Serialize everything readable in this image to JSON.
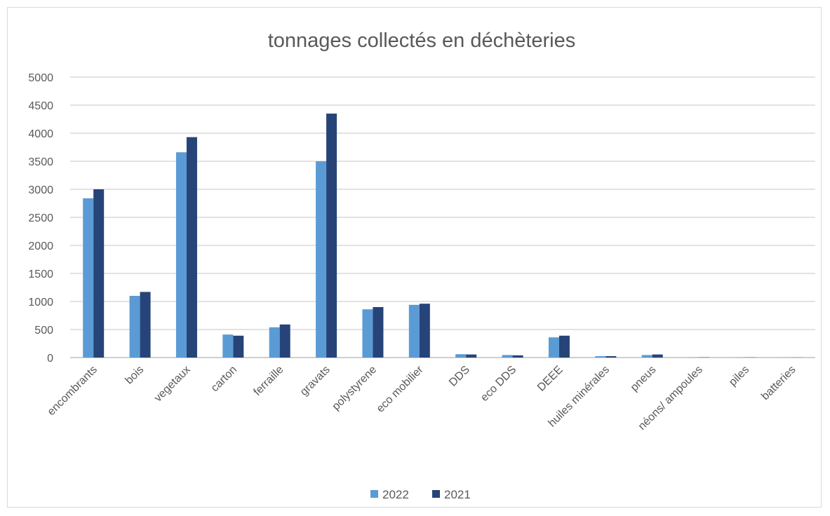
{
  "chart_data": {
    "type": "bar",
    "title": "tonnages collectés en déchèteries",
    "xlabel": "",
    "ylabel": "",
    "ylim": [
      0,
      5000
    ],
    "yticks": [
      0,
      500,
      1000,
      1500,
      2000,
      2500,
      3000,
      3500,
      4000,
      4500,
      5000
    ],
    "grid": true,
    "legend_position": "bottom",
    "categories": [
      "encombrants",
      "bois",
      "vegetaux",
      "carton",
      "ferraille",
      "gravats",
      "polystyrene",
      "eco mobilier",
      "DDS",
      "eco DDS",
      "DEEE",
      "huiles minérales",
      "pneus",
      "néons/ ampoules",
      "piles",
      "batteries"
    ],
    "series": [
      {
        "name": "2022",
        "color": "#5b9bd5",
        "values": [
          2840,
          1100,
          3660,
          410,
          540,
          3500,
          860,
          940,
          60,
          45,
          360,
          25,
          45,
          4,
          3,
          2
        ]
      },
      {
        "name": "2021",
        "color": "#264478",
        "values": [
          3000,
          1170,
          3930,
          390,
          590,
          4350,
          900,
          960,
          55,
          40,
          390,
          25,
          55,
          4,
          3,
          2
        ]
      }
    ]
  }
}
